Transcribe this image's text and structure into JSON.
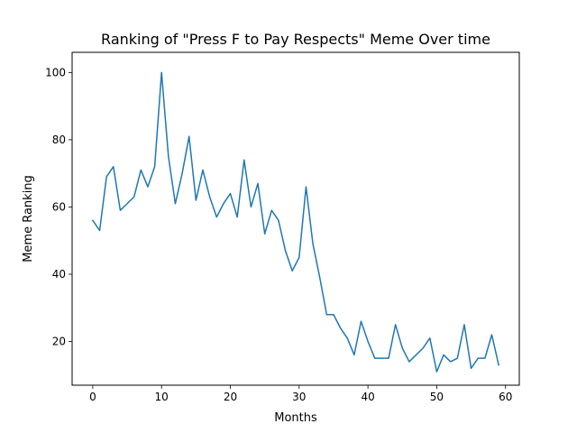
{
  "chart_data": {
    "type": "line",
    "title": "Ranking of \"Press F to Pay Respects\" Meme Over time",
    "xlabel": "Months",
    "ylabel": "Meme Ranking",
    "xlim": [
      -3,
      62
    ],
    "ylim": [
      7,
      106
    ],
    "xticks": [
      0,
      10,
      20,
      30,
      40,
      50,
      60
    ],
    "yticks": [
      20,
      40,
      60,
      80,
      100
    ],
    "grid": false,
    "series": [
      {
        "color": "#1f77b4",
        "x": [
          0,
          1,
          2,
          3,
          4,
          5,
          6,
          7,
          8,
          9,
          10,
          11,
          12,
          13,
          14,
          15,
          16,
          17,
          18,
          19,
          20,
          21,
          22,
          23,
          24,
          25,
          26,
          27,
          28,
          29,
          30,
          31,
          32,
          33,
          34,
          35,
          36,
          37,
          38,
          39,
          40,
          41,
          42,
          43,
          44,
          45,
          46,
          47,
          48,
          49,
          50,
          51,
          52,
          53,
          54,
          55,
          56,
          57,
          58,
          59
        ],
        "y": [
          56,
          53,
          69,
          72,
          59,
          61,
          63,
          71,
          66,
          72,
          100,
          75,
          61,
          70,
          81,
          62,
          71,
          63,
          57,
          61,
          64,
          57,
          74,
          60,
          67,
          52,
          59,
          56,
          47,
          41,
          45,
          66,
          49,
          39,
          28,
          28,
          24,
          21,
          16,
          26,
          20,
          15,
          15,
          15,
          25,
          18,
          14,
          16,
          18,
          21,
          11,
          16,
          14,
          15,
          25,
          12,
          15,
          15,
          22,
          13
        ]
      }
    ]
  }
}
